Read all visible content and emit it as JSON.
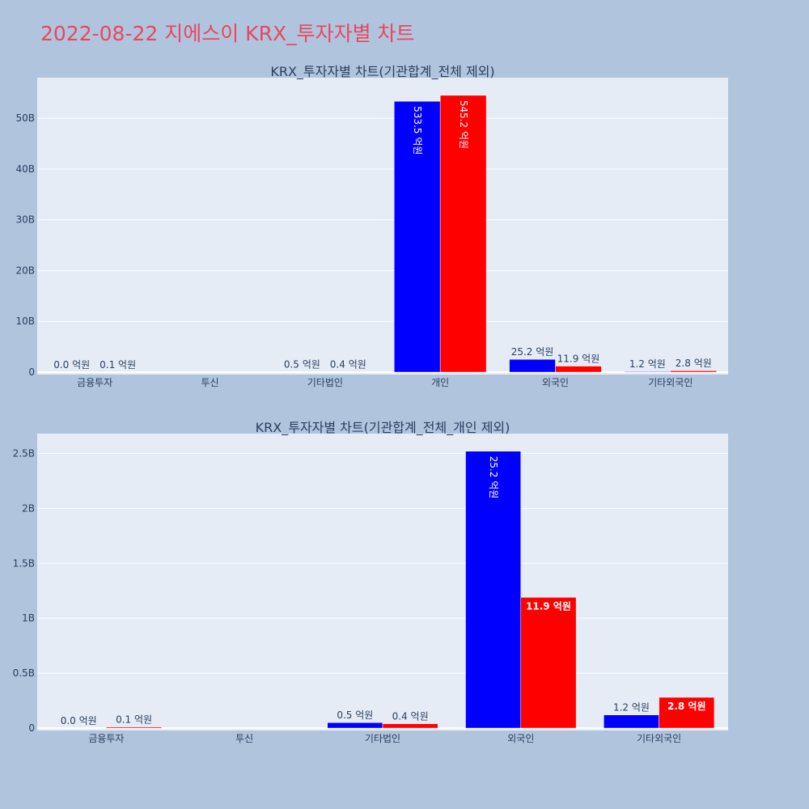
{
  "page": {
    "title": "2022-08-22 지에스이 KRX_투자자별 차트"
  },
  "colors": {
    "page_background": "#b0c4de",
    "plot_background": "#e5ecf6",
    "title": "#e8485e",
    "series_1": "#0000ff",
    "series_2": "#ff0000",
    "text": "#2a3f5f"
  },
  "chart_data": [
    {
      "type": "bar",
      "title": "KRX_투자자별 차트(기관합계_전체 제외)",
      "categories": [
        "금융투자",
        "투신",
        "기타법인",
        "개인",
        "외국인",
        "기타외국인"
      ],
      "series": [
        {
          "color": "#0000ff",
          "values": [
            0.0,
            0,
            50000000,
            53350000000,
            2520000000,
            120000000
          ],
          "labels": [
            "0.0 억원",
            "",
            "0.5 억원",
            "533.5 억원",
            "25.2 억원",
            "1.2 억원"
          ]
        },
        {
          "color": "#ff0000",
          "values": [
            10000000,
            0,
            40000000,
            54520000000,
            1190000000,
            280000000
          ],
          "labels": [
            "0.1 억원",
            "",
            "0.4 억원",
            "545.2 억원",
            "11.9 억원",
            "2.8 억원"
          ]
        }
      ],
      "ylim": [
        0,
        58000000000
      ],
      "yticks": [
        0,
        10000000000,
        20000000000,
        30000000000,
        40000000000,
        50000000000
      ],
      "ytick_labels": [
        "0",
        "10B",
        "20B",
        "30B",
        "40B",
        "50B"
      ],
      "grid": true
    },
    {
      "type": "bar",
      "title": "KRX_투자자별 차트(기관합계_전체_개인 제외)",
      "categories": [
        "금융투자",
        "투신",
        "기타법인",
        "외국인",
        "기타외국인"
      ],
      "series": [
        {
          "color": "#0000ff",
          "values": [
            0.0,
            0,
            50000000,
            2520000000,
            120000000
          ],
          "labels": [
            "0.0 억원",
            "",
            "0.5 억원",
            "25.2 억원",
            "1.2 억원"
          ]
        },
        {
          "color": "#ff0000",
          "values": [
            10000000,
            0,
            40000000,
            1190000000,
            280000000
          ],
          "labels": [
            "0.1 억원",
            "",
            "0.4 억원",
            "11.9 억원",
            "2.8 억원"
          ]
        }
      ],
      "ylim": [
        0,
        2680000000
      ],
      "yticks": [
        0,
        500000000,
        1000000000,
        1500000000,
        2000000000,
        2500000000
      ],
      "ytick_labels": [
        "0",
        "0.5B",
        "1B",
        "1.5B",
        "2B",
        "2.5B"
      ],
      "grid": true
    }
  ]
}
